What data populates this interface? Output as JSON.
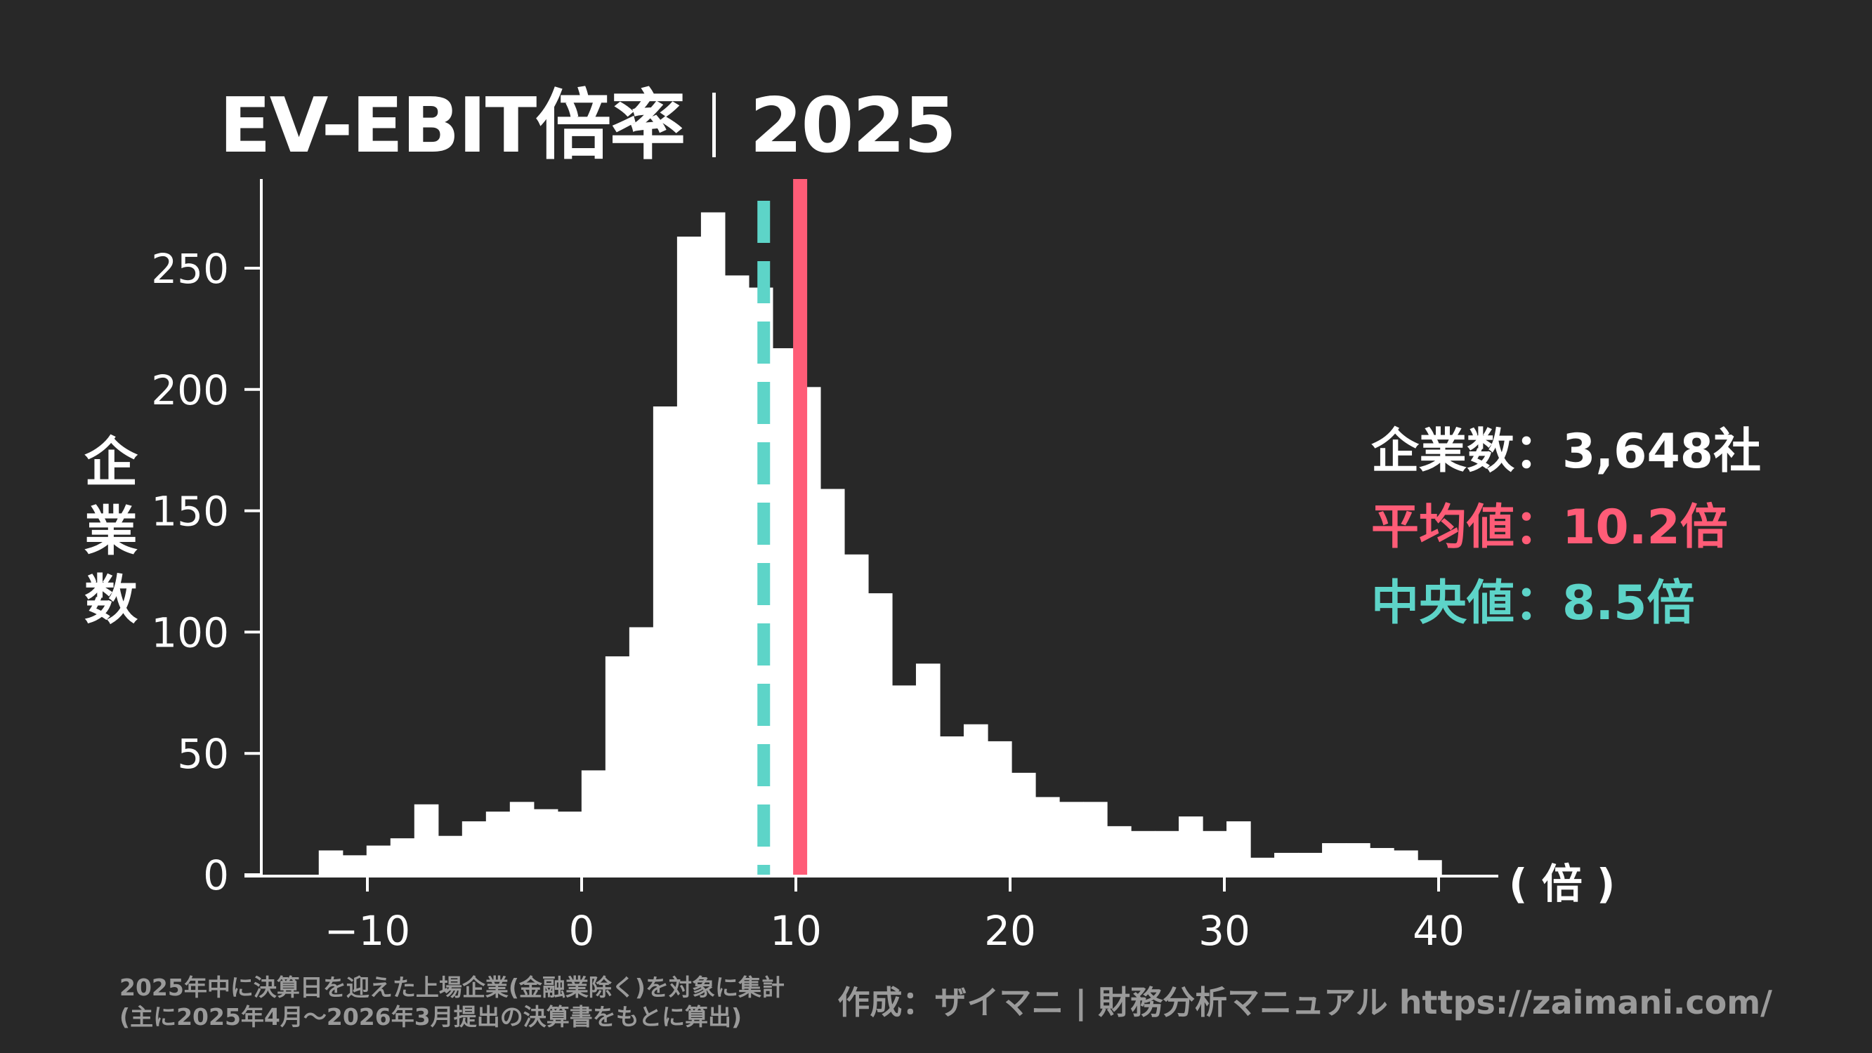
{
  "title": {
    "main": "EV-EBIT倍率",
    "year": "2025"
  },
  "summary": {
    "count_label": "企業数：3,648社",
    "mean_label": "平均値：10.2倍",
    "median_label": "中央値：8.5倍"
  },
  "footer": {
    "note_line1": "2025年中に決算日を迎えた上場企業(金融業除く)を対象に集計",
    "note_line2": "(主に2025年4月〜2026年3月提出の決算書をもとに算出)",
    "credit": "作成：ザイマニ | 財務分析マニュアル https://zaimani.com/"
  },
  "colors": {
    "background": "#282828",
    "bars": "#ffffff",
    "mean": "#ff5c77",
    "median": "#5dd4c8",
    "footer_text": "#9a9a9a"
  },
  "chart_data": {
    "type": "bar",
    "subtype": "histogram",
    "title": "EV-EBIT倍率｜2025",
    "xlabel": "( 倍 )",
    "ylabel": "企業数",
    "xlim": [
      -15,
      43
    ],
    "ylim": [
      0,
      285
    ],
    "xticks": [
      -10,
      0,
      10,
      20,
      30,
      40
    ],
    "xtick_labels": [
      "−10",
      "0",
      "10",
      "20",
      "30",
      "40"
    ],
    "yticks": [
      0,
      50,
      100,
      150,
      200,
      250
    ],
    "ytick_labels": [
      "0",
      "50",
      "100",
      "150",
      "200",
      "250"
    ],
    "grid": false,
    "bin_start": -12.27,
    "bin_width": 1.115,
    "counts": [
      10,
      8,
      12,
      15,
      29,
      16,
      22,
      26,
      30,
      27,
      26,
      43,
      90,
      102,
      193,
      263,
      273,
      247,
      242,
      217,
      201,
      159,
      132,
      116,
      78,
      87,
      57,
      62,
      55,
      42,
      32,
      30,
      30,
      20,
      18,
      18,
      24,
      18,
      22,
      7,
      9,
      9,
      13,
      13,
      11,
      10,
      6
    ],
    "mean": 10.2,
    "median": 8.5,
    "total": 3648
  }
}
